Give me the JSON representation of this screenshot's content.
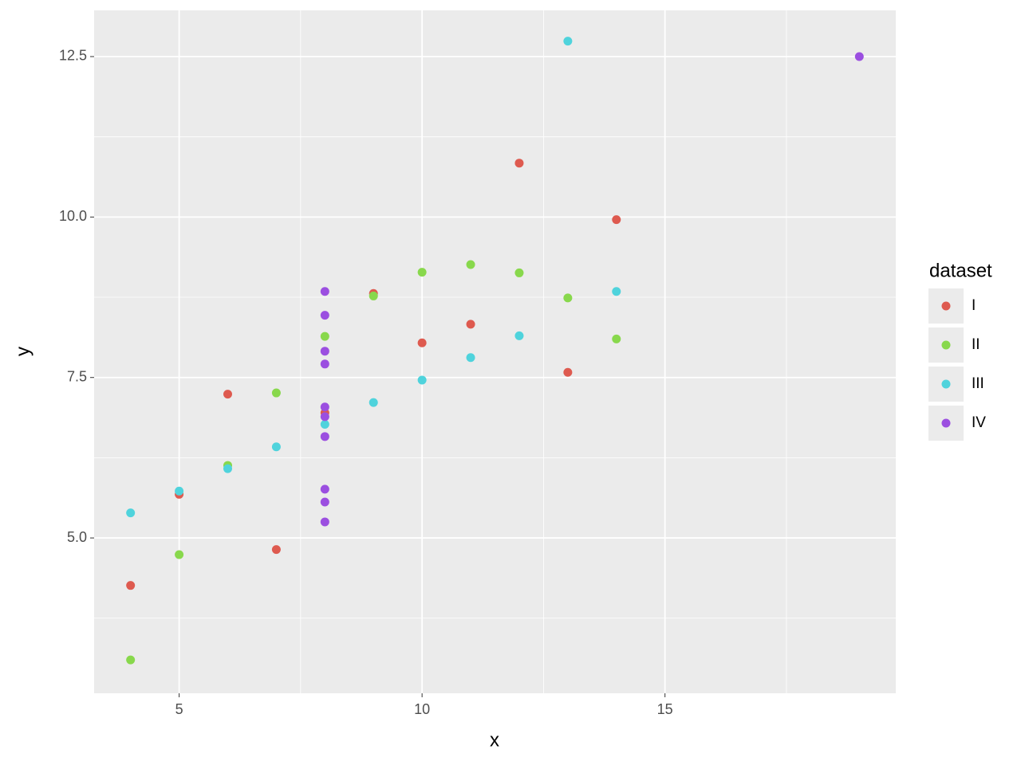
{
  "chart_data": {
    "type": "scatter",
    "x_label": "x",
    "y_label": "y",
    "legend_title": "dataset",
    "legend_position": "right",
    "grid": true,
    "xlim": [
      3.25,
      19.75
    ],
    "ylim": [
      2.58,
      13.22
    ],
    "xticks": [
      5,
      10,
      15
    ],
    "yticks": [
      {
        "value": 5,
        "label": "5.0"
      },
      7.5,
      {
        "value": 10,
        "label": "10.0"
      },
      12.5
    ],
    "series": [
      {
        "name": "I",
        "color": "#de5a4f",
        "x": [
          10,
          8,
          13,
          9,
          11,
          14,
          6,
          4,
          12,
          7,
          5
        ],
        "values": [
          8.04,
          6.95,
          7.58,
          8.81,
          8.33,
          9.96,
          7.24,
          4.26,
          10.84,
          4.82,
          5.68
        ]
      },
      {
        "name": "II",
        "color": "#88d84c",
        "x": [
          10,
          8,
          13,
          9,
          11,
          14,
          6,
          4,
          12,
          7,
          5
        ],
        "values": [
          9.14,
          8.14,
          8.74,
          8.77,
          9.26,
          8.1,
          6.13,
          3.1,
          9.13,
          7.26,
          4.74
        ]
      },
      {
        "name": "III",
        "color": "#4fd3dc",
        "x": [
          10,
          8,
          13,
          9,
          11,
          14,
          6,
          4,
          12,
          7,
          5
        ],
        "values": [
          7.46,
          6.77,
          12.74,
          7.11,
          7.81,
          8.84,
          6.08,
          5.39,
          8.15,
          6.42,
          5.73
        ]
      },
      {
        "name": "IV",
        "color": "#9b4fe0",
        "x": [
          8,
          8,
          8,
          8,
          8,
          8,
          8,
          19,
          8,
          8,
          8
        ],
        "values": [
          6.58,
          5.76,
          7.71,
          8.84,
          8.47,
          7.04,
          5.25,
          12.5,
          5.56,
          7.91,
          6.89
        ]
      }
    ]
  }
}
